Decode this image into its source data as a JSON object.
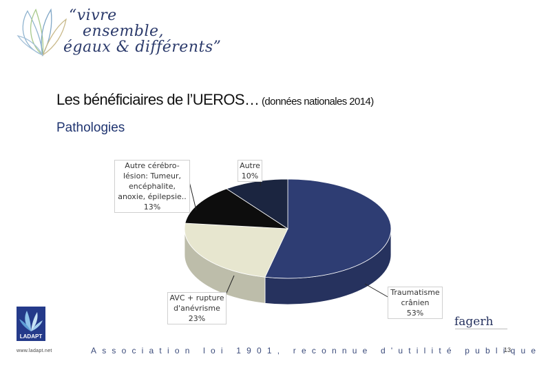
{
  "header": {
    "tagline_line1": "“vivre",
    "tagline_line2": "ensemble,",
    "tagline_line3": "égaux & différents”"
  },
  "title": {
    "main": "Les bénéficiaires de l’UEROS…",
    "sub": " (données nationales 2014)"
  },
  "subtitle": "Pathologies",
  "chart_data": {
    "type": "pie",
    "style": "3d",
    "slices": [
      {
        "label": "Traumatisme crânien",
        "label_lines": [
          "Traumatisme",
          "crânien"
        ],
        "value": 53,
        "pct": "53%",
        "color": "#2e3d73"
      },
      {
        "label": "AVC + rupture d'anévrisme",
        "label_lines": [
          "AVC + rupture",
          "d'anévrisme"
        ],
        "value": 23,
        "pct": "23%",
        "color": "#e7e6cf"
      },
      {
        "label": "Autre cérébro-lésion: Tumeur, encéphalite, anoxie, épilepsie..",
        "label_lines": [
          "Autre cérébro-",
          "lésion: Tumeur,",
          "encéphalite,",
          "anoxie, épilepsie.."
        ],
        "value": 13,
        "pct": "13%",
        "color": "#0d0d0d"
      },
      {
        "label": "Autre",
        "label_lines": [
          "Autre"
        ],
        "value": 10,
        "pct": "10%",
        "color": "#1b2540"
      }
    ]
  },
  "footer": {
    "ladapt_logo_text": "LADAPT",
    "ladapt_url": "www.ladapt.net",
    "association": "Association loi 1901, reconnue d'utilité publique",
    "fagerh": "fagerh",
    "page_number": "13"
  }
}
